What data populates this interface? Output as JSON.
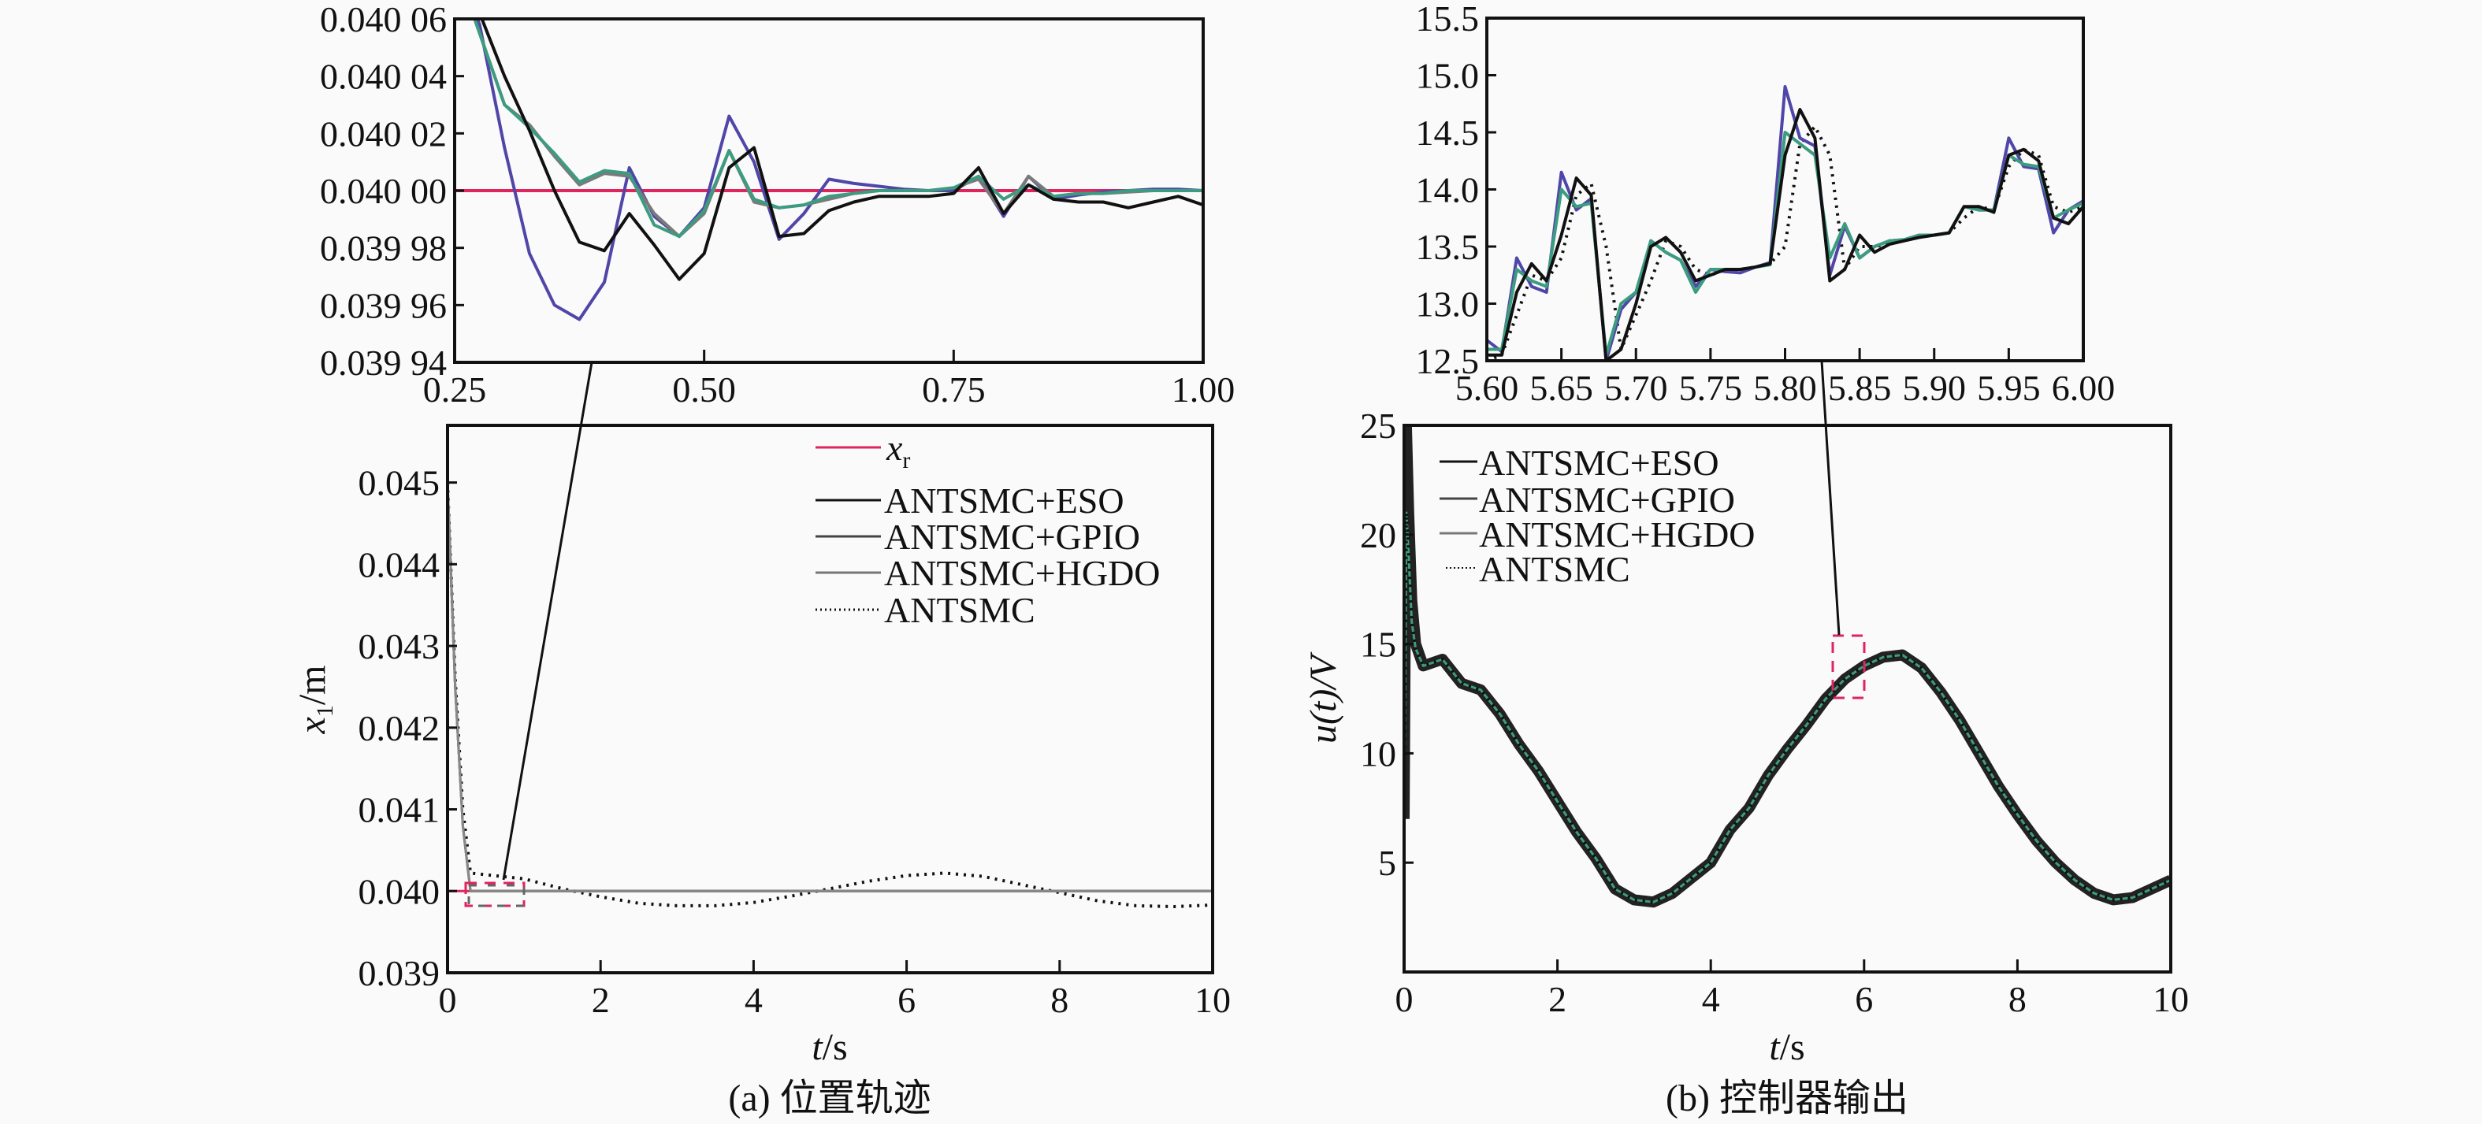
{
  "chart_data": [
    {
      "id": "insetA",
      "type": "line",
      "title": "",
      "xlim": [
        0.25,
        1.0
      ],
      "ylim": [
        -6,
        6
      ],
      "y_unit": "offset from 0.040 00 m in units of 1e-5 m",
      "xticks": [
        0.25,
        0.5,
        0.75,
        1.0
      ],
      "xtick_labels": [
        "0.25",
        "0.50",
        "0.75",
        "1.00"
      ],
      "yticks": [
        6,
        4,
        2,
        0,
        -2,
        -4,
        -6
      ],
      "ytick_labels": [
        "0.040 06",
        "0.040 04",
        "0.040 02",
        "0.040 00",
        "0.039 98",
        "0.039 96",
        "0.039 94"
      ],
      "x": [
        0.25,
        0.275,
        0.3,
        0.325,
        0.35,
        0.375,
        0.4,
        0.425,
        0.45,
        0.475,
        0.5,
        0.525,
        0.55,
        0.575,
        0.6,
        0.625,
        0.65,
        0.675,
        0.7,
        0.725,
        0.75,
        0.775,
        0.8,
        0.825,
        0.85,
        0.875,
        0.9,
        0.925,
        0.95,
        0.975,
        1.0
      ],
      "series": [
        {
          "name": "xr",
          "color": "#e0245e",
          "style": "solid",
          "values": [
            0,
            0,
            0,
            0,
            0,
            0,
            0,
            0,
            0,
            0,
            0,
            0,
            0,
            0,
            0,
            0,
            0,
            0,
            0,
            0,
            0,
            0,
            0,
            0,
            0,
            0,
            0,
            0,
            0,
            0,
            0
          ]
        },
        {
          "name": "ANTSMC+GPIO",
          "color": "#4f46a8",
          "style": "solid",
          "values": [
            8,
            5.8,
            1.5,
            -2.2,
            -4.0,
            -4.5,
            -3.2,
            0.8,
            -0.9,
            -1.6,
            -0.6,
            2.6,
            1.0,
            -1.7,
            -0.8,
            0.4,
            0.25,
            0.15,
            0.05,
            0,
            0,
            0.5,
            -0.9,
            0.5,
            -0.3,
            -0.15,
            -0.05,
            0,
            0.05,
            0.05,
            0
          ]
        },
        {
          "name": "ANTSMC",
          "color": "#7a7a7a",
          "style": "solid",
          "values": [
            8,
            5.5,
            3.0,
            2.3,
            1.2,
            0.2,
            0.6,
            0.5,
            -0.8,
            -1.6,
            -0.8,
            1.4,
            -0.4,
            -0.6,
            -0.5,
            -0.3,
            -0.1,
            0,
            0,
            0,
            0.1,
            0.4,
            -0.8,
            0.5,
            -0.2,
            -0.1,
            -0.1,
            -0.05,
            0,
            0,
            0
          ]
        },
        {
          "name": "ANTSMC+HGDO",
          "color": "#3c9c80",
          "style": "solid",
          "values": [
            8,
            5.5,
            3.0,
            2.2,
            1.3,
            0.3,
            0.7,
            0.6,
            -1.2,
            -1.6,
            -0.7,
            1.4,
            -0.3,
            -0.6,
            -0.5,
            -0.2,
            -0.1,
            0,
            0,
            0,
            0.1,
            0.5,
            -0.3,
            0.2,
            -0.2,
            -0.1,
            -0.1,
            0,
            0,
            0,
            0
          ]
        },
        {
          "name": "ANTSMC+ESO",
          "color": "#111111",
          "style": "solid",
          "values": [
            8,
            6.2,
            4.0,
            2.1,
            0,
            -1.8,
            -2.1,
            -0.8,
            -1.9,
            -3.1,
            -2.2,
            0.8,
            1.5,
            -1.6,
            -1.5,
            -0.7,
            -0.4,
            -0.2,
            -0.2,
            -0.2,
            -0.1,
            0.8,
            -0.8,
            0.2,
            -0.3,
            -0.4,
            -0.4,
            -0.6,
            -0.4,
            -0.2,
            -0.5
          ]
        }
      ]
    },
    {
      "id": "mainA",
      "type": "line",
      "xlabel_var": "t",
      "xlabel_unit": "/s",
      "ylabel_var": "x",
      "ylabel_sub": "1",
      "ylabel_unit": "/m",
      "caption": "(a) 位置轨迹",
      "xlim": [
        0,
        10
      ],
      "ylim": [
        0.039,
        0.0457
      ],
      "xticks": [
        0,
        2,
        4,
        6,
        8,
        10
      ],
      "xtick_labels": [
        "0",
        "2",
        "4",
        "6",
        "8",
        "10"
      ],
      "yticks": [
        0.039,
        0.04,
        0.041,
        0.042,
        0.043,
        0.044,
        0.045
      ],
      "ytick_labels": [
        "0.039",
        "0.040",
        "0.041",
        "0.042",
        "0.043",
        "0.044",
        "0.045"
      ],
      "legend": {
        "placement": "top-right",
        "entries": [
          {
            "label_var": "x",
            "label_sub": "r",
            "color": "#e0245e",
            "style": "solid"
          },
          {
            "label": "ANTSMC+ESO",
            "color": "#111111",
            "style": "solid"
          },
          {
            "label": "ANTSMC+GPIO",
            "color": "#444444",
            "style": "solid"
          },
          {
            "label": "ANTSMC+HGDO",
            "color": "#777777",
            "style": "solid"
          },
          {
            "label": "ANTSMC",
            "color": "#111111",
            "style": "dotted"
          }
        ]
      },
      "x": [
        0,
        0.1,
        0.2,
        0.3,
        0.5,
        1,
        1.5,
        2,
        2.5,
        3,
        3.5,
        4,
        4.5,
        5,
        5.5,
        6,
        6.5,
        7,
        7.5,
        8,
        8.5,
        9,
        9.5,
        10
      ],
      "series": [
        {
          "name": "xr",
          "color": "#e0245e",
          "style": "solid",
          "values": [
            0.04,
            0.04,
            0.04,
            0.04,
            0.04,
            0.04,
            0.04,
            0.04,
            0.04,
            0.04,
            0.04,
            0.04,
            0.04,
            0.04,
            0.04,
            0.04,
            0.04,
            0.04,
            0.04,
            0.04,
            0.04,
            0.04,
            0.04,
            0.04
          ]
        },
        {
          "name": "ANTSMC",
          "color": "#111111",
          "style": "dotted",
          "values": [
            0.045,
            0.0426,
            0.041,
            0.04022,
            0.0402,
            0.04015,
            0.04003,
            0.03993,
            0.03985,
            0.03982,
            0.03982,
            0.03986,
            0.03994,
            0.04003,
            0.04012,
            0.04019,
            0.04022,
            0.04018,
            0.04008,
            0.03998,
            0.03988,
            0.03982,
            0.03981,
            0.03983
          ]
        },
        {
          "name": "ANTSMC+HGDO",
          "color": "#3c9c80",
          "style": "solid",
          "values": [
            0.045,
            0.0425,
            0.0408,
            0.04,
            0.04,
            0.04,
            0.04,
            0.04,
            0.04,
            0.04,
            0.04,
            0.04,
            0.04,
            0.04,
            0.04,
            0.04,
            0.04,
            0.04,
            0.04,
            0.04,
            0.04,
            0.04,
            0.04,
            0.04
          ]
        },
        {
          "name": "ANTSMC+GPIO",
          "color": "#555555",
          "style": "solid",
          "values": [
            0.045,
            0.0425,
            0.0408,
            0.04,
            0.04,
            0.04,
            0.04,
            0.04,
            0.04,
            0.04,
            0.04,
            0.04,
            0.04,
            0.04,
            0.04,
            0.04,
            0.04,
            0.04,
            0.04,
            0.04,
            0.04,
            0.04,
            0.04,
            0.04
          ]
        },
        {
          "name": "ANTSMC+ESO",
          "color": "#888888",
          "style": "solid",
          "values": [
            0.045,
            0.0425,
            0.0408,
            0.04,
            0.04,
            0.04,
            0.04,
            0.04,
            0.04,
            0.04,
            0.04,
            0.04,
            0.04,
            0.04,
            0.04,
            0.04,
            0.04,
            0.04,
            0.04,
            0.04,
            0.04,
            0.04,
            0.04,
            0.04
          ]
        }
      ],
      "zoom_region": {
        "x": [
          0.25,
          1.0
        ],
        "y": [
          0.03994,
          0.04006
        ]
      }
    },
    {
      "id": "insetB",
      "type": "line",
      "xlim": [
        5.6,
        6.0
      ],
      "ylim": [
        12.5,
        15.5
      ],
      "xticks": [
        5.6,
        5.65,
        5.7,
        5.75,
        5.8,
        5.85,
        5.9,
        5.95,
        6.0
      ],
      "xtick_labels": [
        "5.60",
        "5.65",
        "5.70",
        "5.75",
        "5.80",
        "5.85",
        "5.90",
        "5.95",
        "6.00"
      ],
      "yticks": [
        12.5,
        13.0,
        13.5,
        14.0,
        14.5,
        15.0,
        15.5
      ],
      "ytick_labels": [
        "12.5",
        "13.0",
        "13.5",
        "14.0",
        "14.5",
        "15.0",
        "15.5"
      ],
      "x": [
        5.6,
        5.61,
        5.62,
        5.63,
        5.64,
        5.65,
        5.66,
        5.67,
        5.68,
        5.69,
        5.7,
        5.71,
        5.72,
        5.73,
        5.74,
        5.75,
        5.76,
        5.77,
        5.78,
        5.79,
        5.8,
        5.81,
        5.82,
        5.83,
        5.84,
        5.85,
        5.86,
        5.87,
        5.88,
        5.89,
        5.9,
        5.91,
        5.92,
        5.93,
        5.94,
        5.95,
        5.96,
        5.97,
        5.98,
        5.99,
        6.0
      ],
      "series": [
        {
          "name": "ANTSMC",
          "color": "#111111",
          "style": "dotted",
          "values": [
            12.5,
            12.55,
            12.9,
            13.25,
            13.2,
            13.4,
            13.95,
            14.05,
            13.5,
            12.6,
            12.9,
            13.2,
            13.55,
            13.5,
            13.3,
            13.25,
            13.3,
            13.3,
            13.32,
            13.35,
            13.5,
            14.4,
            14.55,
            14.3,
            13.3,
            13.5,
            13.5,
            13.52,
            13.56,
            13.6,
            13.6,
            13.62,
            13.75,
            13.85,
            13.82,
            14.2,
            14.35,
            14.3,
            13.85,
            13.8,
            13.85
          ]
        },
        {
          "name": "ANTSMC+GPIO",
          "color": "#4f46a8",
          "style": "solid",
          "values": [
            12.68,
            12.58,
            13.4,
            13.15,
            13.1,
            14.15,
            13.82,
            13.92,
            12.5,
            12.95,
            13.1,
            13.55,
            13.45,
            13.38,
            13.15,
            13.3,
            13.28,
            13.27,
            13.32,
            13.36,
            14.9,
            14.45,
            14.38,
            13.25,
            13.68,
            13.4,
            13.5,
            13.55,
            13.56,
            13.6,
            13.6,
            13.62,
            13.85,
            13.82,
            13.82,
            14.45,
            14.2,
            14.18,
            13.62,
            13.82,
            13.9
          ]
        },
        {
          "name": "ANTSMC+HGDO",
          "color": "#3c9c80",
          "style": "solid",
          "values": [
            12.6,
            12.6,
            13.3,
            13.2,
            13.15,
            14.0,
            13.85,
            13.88,
            12.55,
            13.0,
            13.1,
            13.55,
            13.45,
            13.38,
            13.1,
            13.3,
            13.3,
            13.3,
            13.32,
            13.34,
            14.5,
            14.4,
            14.3,
            13.4,
            13.7,
            13.4,
            13.5,
            13.55,
            13.56,
            13.6,
            13.6,
            13.62,
            13.85,
            13.82,
            13.82,
            14.3,
            14.22,
            14.2,
            13.75,
            13.82,
            13.88
          ]
        },
        {
          "name": "ANTSMC+ESO",
          "color": "#111111",
          "style": "solid",
          "values": [
            12.55,
            12.55,
            13.1,
            13.35,
            13.2,
            13.6,
            14.1,
            13.95,
            12.5,
            12.6,
            13.0,
            13.5,
            13.58,
            13.45,
            13.2,
            13.25,
            13.3,
            13.3,
            13.32,
            13.35,
            14.3,
            14.7,
            14.45,
            13.2,
            13.3,
            13.6,
            13.45,
            13.52,
            13.55,
            13.58,
            13.6,
            13.62,
            13.85,
            13.85,
            13.8,
            14.3,
            14.35,
            14.25,
            13.75,
            13.7,
            13.85
          ]
        }
      ]
    },
    {
      "id": "mainB",
      "type": "line",
      "xlabel_var": "t",
      "xlabel_unit": "/s",
      "ylabel": "u(t)/V",
      "caption": "(b) 控制器输出",
      "xlim": [
        0,
        10
      ],
      "ylim": [
        0,
        25
      ],
      "xticks": [
        0,
        2,
        4,
        6,
        8,
        10
      ],
      "xtick_labels": [
        "0",
        "2",
        "4",
        "6",
        "8",
        "10"
      ],
      "yticks": [
        5,
        10,
        15,
        20,
        25
      ],
      "ytick_labels": [
        "5",
        "10",
        "15",
        "20",
        "25"
      ],
      "legend": {
        "placement": "top-left",
        "entries": [
          {
            "label": "ANTSMC+ESO",
            "color": "#111111",
            "style": "solid"
          },
          {
            "label": "ANTSMC+GPIO",
            "color": "#444444",
            "style": "solid"
          },
          {
            "label": "ANTSMC+HGDO",
            "color": "#777777",
            "style": "solid"
          },
          {
            "label": "ANTSMC",
            "color": "#111111",
            "style": "dotted"
          }
        ]
      },
      "x": [
        0,
        0.03,
        0.06,
        0.1,
        0.15,
        0.25,
        0.5,
        0.75,
        1,
        1.25,
        1.5,
        1.75,
        2,
        2.25,
        2.5,
        2.75,
        3,
        3.25,
        3.5,
        3.75,
        4,
        4.25,
        4.5,
        4.75,
        5,
        5.25,
        5.5,
        5.75,
        6,
        6.25,
        6.5,
        6.75,
        7,
        7.25,
        7.5,
        7.75,
        8,
        8.25,
        8.5,
        8.75,
        9,
        9.25,
        9.5,
        9.75,
        10
      ],
      "series": [
        {
          "name": "ANTSMC",
          "color": "#222222",
          "style": "band",
          "values": [
            7,
            25,
            21,
            17,
            15,
            14.0,
            14.3,
            13.2,
            12.9,
            11.8,
            10.4,
            9.2,
            7.8,
            6.4,
            5.2,
            3.8,
            3.3,
            3.2,
            3.6,
            4.3,
            5.0,
            6.5,
            7.5,
            9.0,
            10.2,
            11.3,
            12.5,
            13.4,
            14.0,
            14.4,
            14.5,
            13.9,
            12.8,
            11.5,
            10.0,
            8.5,
            7.2,
            6.0,
            5.0,
            4.2,
            3.6,
            3.3,
            3.4,
            3.8,
            4.2
          ]
        },
        {
          "name": "ANTSMC+HGDO",
          "color": "#3c9c80",
          "style": "solid",
          "values": [
            7,
            21,
            19,
            16,
            14.8,
            14.0,
            14.3,
            13.2,
            12.9,
            11.8,
            10.4,
            9.2,
            7.8,
            6.4,
            5.2,
            3.8,
            3.3,
            3.2,
            3.6,
            4.3,
            5.0,
            6.5,
            7.5,
            9.0,
            10.2,
            11.3,
            12.5,
            13.4,
            14.0,
            14.4,
            14.5,
            13.9,
            12.8,
            11.5,
            10.0,
            8.5,
            7.2,
            6.0,
            5.0,
            4.2,
            3.6,
            3.3,
            3.4,
            3.8,
            4.2
          ]
        },
        {
          "name": "ANTSMC+ESO",
          "color": "#111111",
          "style": "dotted",
          "values": [
            7,
            21,
            19,
            16,
            14.8,
            14.0,
            14.3,
            13.2,
            12.9,
            11.8,
            10.4,
            9.2,
            7.8,
            6.4,
            5.2,
            3.8,
            3.3,
            3.2,
            3.6,
            4.3,
            5.0,
            6.5,
            7.5,
            9.0,
            10.2,
            11.3,
            12.5,
            13.4,
            14.0,
            14.4,
            14.5,
            13.9,
            12.8,
            11.5,
            10.0,
            8.5,
            7.2,
            6.0,
            5.0,
            4.2,
            3.6,
            3.3,
            3.4,
            3.8,
            4.2
          ]
        }
      ],
      "zoom_region": {
        "x": [
          5.6,
          6.0
        ],
        "y": [
          12.5,
          15.5
        ]
      }
    }
  ]
}
